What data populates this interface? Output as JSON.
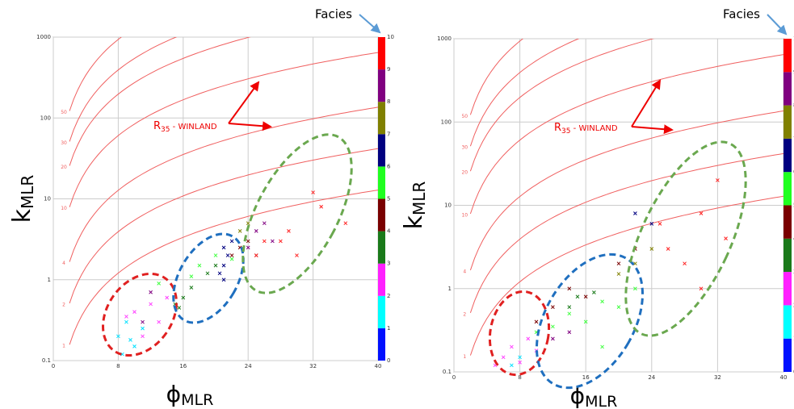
{
  "chart_data": [
    {
      "type": "scatter",
      "x_label": "ϕ",
      "x_label_sub": "MLR",
      "y_label": "k",
      "y_label_sub": "MLR",
      "annotation": "R",
      "annotation_sub": "35",
      "annotation_rest": " - WINLAND",
      "xlim": [
        0,
        40
      ],
      "xticks": [
        0,
        8,
        16,
        24,
        32,
        40
      ],
      "ylim": [
        0.1,
        1000
      ],
      "yticks": [
        0.1,
        1,
        10,
        100,
        1000
      ],
      "log_y": true,
      "grid": true,
      "winland_r35": [
        50,
        30,
        20,
        10,
        4,
        2,
        1
      ],
      "curve_color": "#f06060",
      "colorbar": {
        "title": "Facies",
        "ticks": [
          0,
          1,
          2,
          3,
          4,
          5,
          6,
          7,
          8,
          9,
          10
        ],
        "colors": [
          "#0010ff",
          "#00ffff",
          "#ff20ff",
          "#1a7a1a",
          "#7a0000",
          "#20ff20",
          "#000080",
          "#808000",
          "#800080",
          "#ff0000"
        ]
      },
      "series": [
        {
          "color": "#00e0ff",
          "x": [
            8,
            9,
            10,
            8.5,
            11,
            9.5
          ],
          "values": [
            0.2,
            0.3,
            0.15,
            0.12,
            0.25,
            0.18
          ]
        },
        {
          "color": "#ff40ff",
          "x": [
            10,
            12,
            13,
            14,
            11,
            9
          ],
          "values": [
            0.4,
            0.5,
            0.3,
            0.6,
            0.2,
            0.35
          ]
        },
        {
          "color": "#1a7a1a",
          "x": [
            15,
            16,
            17,
            19,
            20,
            15.5
          ],
          "values": [
            0.5,
            0.6,
            0.8,
            1.2,
            1.5,
            0.45
          ]
        },
        {
          "color": "#7a0000",
          "x": [
            22,
            24,
            25,
            23
          ],
          "values": [
            2,
            3,
            2,
            2.5
          ]
        },
        {
          "color": "#40ff40",
          "x": [
            13,
            18,
            20,
            22,
            17
          ],
          "values": [
            0.9,
            1.5,
            2,
            1.8,
            1.1
          ]
        },
        {
          "color": "#000080",
          "x": [
            21,
            21,
            21,
            22,
            20.5,
            21.5
          ],
          "values": [
            1,
            1.5,
            2.5,
            3,
            1.2,
            2
          ]
        },
        {
          "color": "#808000",
          "x": [
            23,
            24
          ],
          "values": [
            4,
            5
          ]
        },
        {
          "color": "#800080",
          "x": [
            12,
            25,
            26,
            27,
            24,
            11
          ],
          "values": [
            0.7,
            4,
            5,
            3,
            2.5,
            0.3
          ]
        },
        {
          "color": "#ff2020",
          "x": [
            26,
            28,
            30,
            29,
            33,
            32,
            25,
            36
          ],
          "values": [
            3,
            3,
            2,
            4,
            8,
            12,
            2,
            5
          ]
        }
      ]
    },
    {
      "type": "scatter",
      "x_label": "ϕ",
      "x_label_sub": "MLR",
      "y_label": "k",
      "y_label_sub": "MLR",
      "annotation": "R",
      "annotation_sub": "35",
      "annotation_rest": " - WINLAND",
      "xlim": [
        0,
        40
      ],
      "xticks": [
        0,
        8,
        16,
        24,
        32,
        40
      ],
      "ylim": [
        0.1,
        1000
      ],
      "yticks": [
        0.1,
        1,
        10,
        100,
        1000
      ],
      "log_y": true,
      "grid": true,
      "winland_r35": [
        50,
        30,
        20,
        10,
        4,
        2,
        1
      ],
      "curve_color": "#f06060",
      "colorbar": {
        "title": "Facies",
        "ticks": [
          0,
          1,
          2,
          3,
          4,
          5,
          6,
          7,
          8,
          9,
          10
        ],
        "colors": [
          "#0010ff",
          "#00ffff",
          "#ff20ff",
          "#1a7a1a",
          "#7a0000",
          "#20ff20",
          "#000080",
          "#808000",
          "#800080",
          "#ff0000"
        ]
      },
      "series": [
        {
          "color": "#00e0ff",
          "x": [
            7,
            8
          ],
          "values": [
            0.12,
            0.15
          ]
        },
        {
          "color": "#ff40ff",
          "x": [
            6,
            7,
            8,
            9,
            10,
            5
          ],
          "values": [
            0.15,
            0.2,
            0.13,
            0.25,
            0.18,
            0.12
          ]
        },
        {
          "color": "#1a7a1a",
          "x": [
            14,
            15,
            17
          ],
          "values": [
            0.6,
            0.8,
            0.9
          ]
        },
        {
          "color": "#7a0000",
          "x": [
            10,
            12,
            14,
            16,
            20,
            22
          ],
          "values": [
            0.4,
            0.6,
            1,
            0.8,
            2,
            3
          ]
        },
        {
          "color": "#40ff40",
          "x": [
            10,
            12,
            14,
            16,
            18,
            20,
            22,
            18
          ],
          "values": [
            0.3,
            0.35,
            0.5,
            0.4,
            0.7,
            0.6,
            1,
            0.2
          ]
        },
        {
          "color": "#000080",
          "x": [
            22,
            24
          ],
          "values": [
            8,
            6
          ]
        },
        {
          "color": "#808000",
          "x": [
            20,
            22,
            24
          ],
          "values": [
            1.5,
            2,
            3
          ]
        },
        {
          "color": "#800080",
          "x": [
            12,
            14
          ],
          "values": [
            0.25,
            0.3
          ]
        },
        {
          "color": "#ff2020",
          "x": [
            26,
            28,
            30,
            30,
            32,
            33,
            25
          ],
          "values": [
            3,
            2,
            1,
            8,
            20,
            4,
            6
          ]
        }
      ]
    }
  ]
}
